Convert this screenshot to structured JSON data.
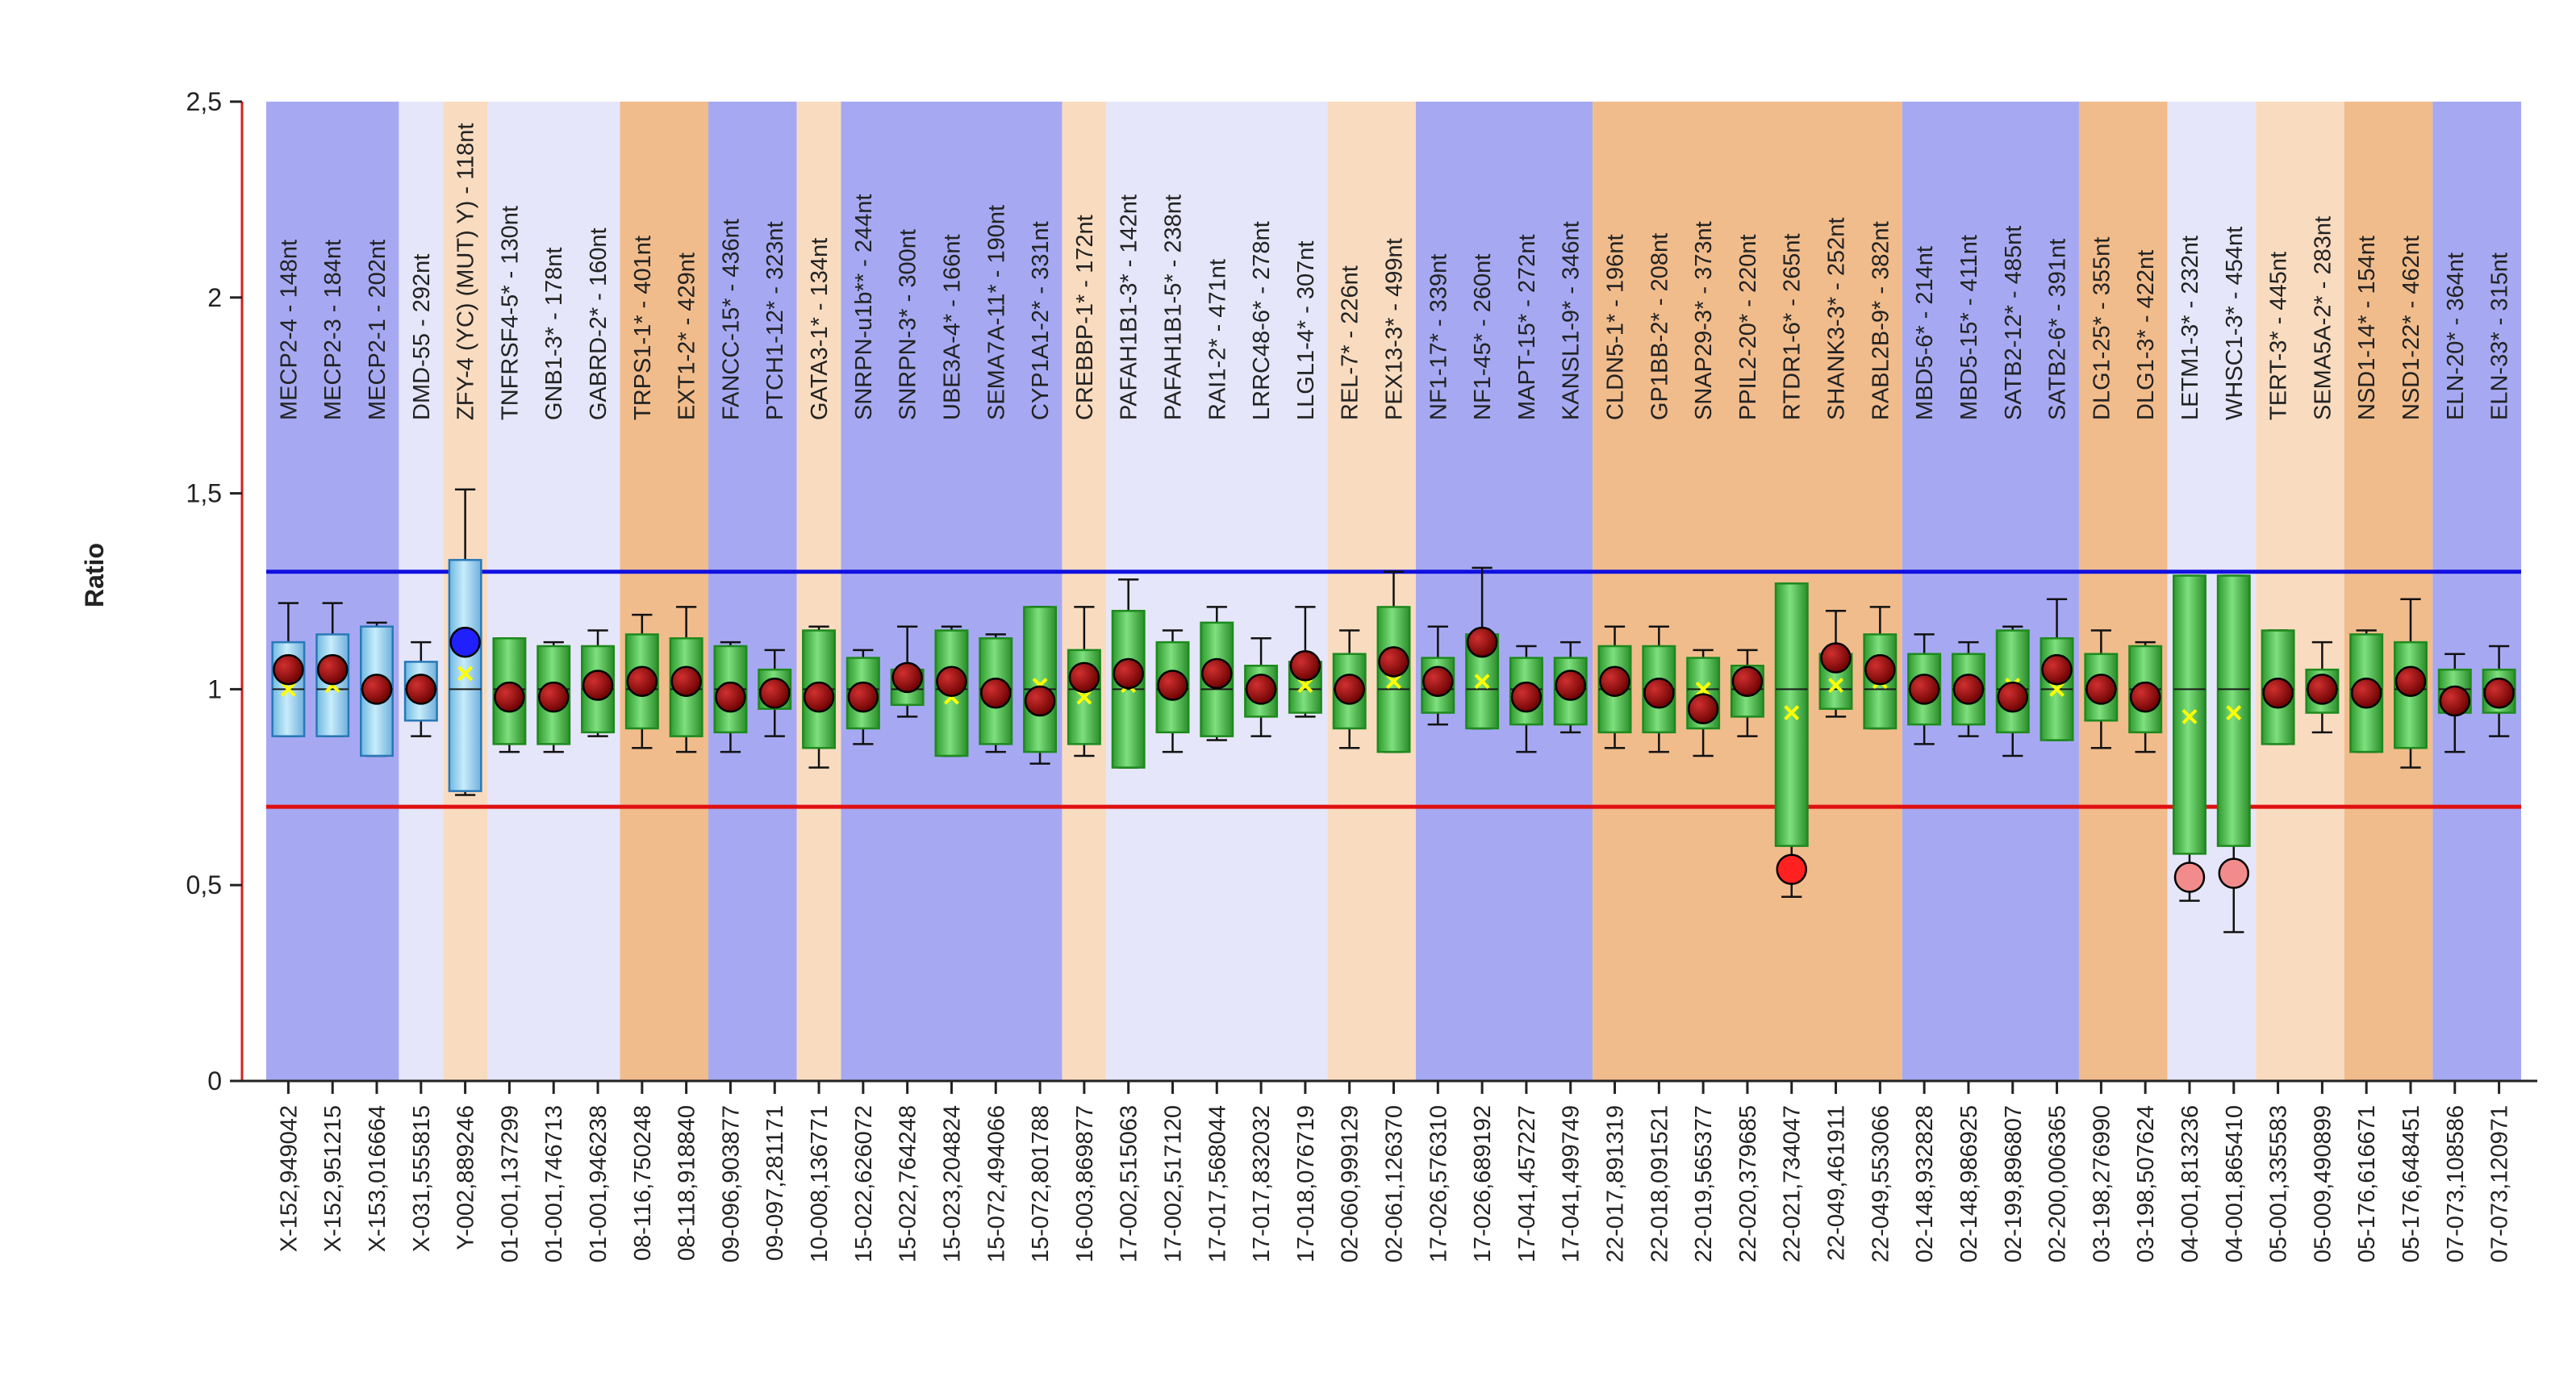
{
  "chart_data": {
    "type": "box",
    "title": "",
    "xlabel": "",
    "ylabel": "Ratio",
    "ylim": [
      0,
      2.5
    ],
    "yticks": [
      "0",
      "0,5",
      "1",
      "1,5",
      "2",
      "2,5"
    ],
    "ytick_values": [
      0,
      0.5,
      1,
      1.5,
      2,
      2.5
    ],
    "threshold_upper": 1.3,
    "threshold_lower": 0.7,
    "colors": {
      "band_blue": "#a6a9f2",
      "band_lavender": "#e6e6fa",
      "band_peach": "#f9dcc0",
      "band_orange": "#f1bc8c",
      "box_green": "#6fd36f",
      "box_green_dark": "#1e8a1e",
      "box_blue": "#a8dcf2",
      "box_blue_dark": "#2a78b8",
      "threshold_upper": "#1010e0",
      "threshold_lower": "#e01010",
      "axis": "#d02020",
      "marker_normal": "#b00000",
      "marker_up": "#2020ff",
      "marker_down": "#ff2020",
      "marker_down_light": "#f28b8b",
      "mean_marker": "#ffff00"
    },
    "bands": [
      {
        "span": [
          0,
          2
        ],
        "color": "band_blue"
      },
      {
        "span": [
          3,
          3
        ],
        "color": "band_lavender"
      },
      {
        "span": [
          4,
          4
        ],
        "color": "band_peach"
      },
      {
        "span": [
          5,
          7
        ],
        "color": "band_lavender"
      },
      {
        "span": [
          8,
          9
        ],
        "color": "band_orange"
      },
      {
        "span": [
          10,
          11
        ],
        "color": "band_blue"
      },
      {
        "span": [
          12,
          12
        ],
        "color": "band_peach"
      },
      {
        "span": [
          13,
          17
        ],
        "color": "band_blue"
      },
      {
        "span": [
          18,
          18
        ],
        "color": "band_peach"
      },
      {
        "span": [
          19,
          23
        ],
        "color": "band_lavender"
      },
      {
        "span": [
          24,
          25
        ],
        "color": "band_peach"
      },
      {
        "span": [
          26,
          29
        ],
        "color": "band_blue"
      },
      {
        "span": [
          30,
          36
        ],
        "color": "band_orange"
      },
      {
        "span": [
          37,
          40
        ],
        "color": "band_blue"
      },
      {
        "span": [
          41,
          42
        ],
        "color": "band_orange"
      },
      {
        "span": [
          43,
          44
        ],
        "color": "band_lavender"
      },
      {
        "span": [
          45,
          46
        ],
        "color": "band_peach"
      },
      {
        "span": [
          47,
          48
        ],
        "color": "band_orange"
      },
      {
        "span": [
          49,
          50
        ],
        "color": "band_blue"
      }
    ],
    "probes": [
      {
        "label": "MECP2-4 - 148nt",
        "x": "X-152,949042",
        "q1": 0.88,
        "q3": 1.12,
        "wlo": 0.88,
        "whi": 1.22,
        "value": 1.05,
        "mean": 1.0,
        "box": "box_blue",
        "marker": "marker_normal"
      },
      {
        "label": "MECP2-3 - 184nt",
        "x": "X-152,951215",
        "q1": 0.88,
        "q3": 1.14,
        "wlo": 0.88,
        "whi": 1.22,
        "value": 1.05,
        "mean": 1.01,
        "box": "box_blue",
        "marker": "marker_normal"
      },
      {
        "label": "MECP2-1 - 202nt",
        "x": "X-153,016664",
        "q1": 0.83,
        "q3": 1.16,
        "wlo": 0.83,
        "whi": 1.17,
        "value": 1.0,
        "mean": 1.0,
        "box": "box_blue",
        "marker": "marker_normal"
      },
      {
        "label": "DMD-55 - 292nt",
        "x": "X-031,555815",
        "q1": 0.92,
        "q3": 1.07,
        "wlo": 0.88,
        "whi": 1.12,
        "value": 1.0,
        "mean": 1.0,
        "box": "box_blue",
        "marker": "marker_normal"
      },
      {
        "label": "ZFY-4 (YC) (MUT) Y) - 118nt",
        "x": "Y-002,889246",
        "q1": 0.74,
        "q3": 1.33,
        "wlo": 0.73,
        "whi": 1.51,
        "value": 1.12,
        "mean": 1.04,
        "box": "box_blue",
        "marker": "marker_up"
      },
      {
        "label": "TNFRSF4-5* - 130nt",
        "x": "01-001,137299",
        "q1": 0.86,
        "q3": 1.13,
        "wlo": 0.84,
        "whi": 1.13,
        "value": 0.98,
        "mean": 0.98,
        "box": "box_green",
        "marker": "marker_normal"
      },
      {
        "label": "GNB1-3* - 178nt",
        "x": "01-001,746713",
        "q1": 0.86,
        "q3": 1.11,
        "wlo": 0.84,
        "whi": 1.12,
        "value": 0.98,
        "mean": 0.98,
        "box": "box_green",
        "marker": "marker_normal"
      },
      {
        "label": "GABRD-2* - 160nt",
        "x": "01-001,946238",
        "q1": 0.89,
        "q3": 1.11,
        "wlo": 0.88,
        "whi": 1.15,
        "value": 1.01,
        "mean": 1.01,
        "box": "box_green",
        "marker": "marker_normal"
      },
      {
        "label": "TRPS1-1* - 401nt",
        "x": "08-116,750248",
        "q1": 0.9,
        "q3": 1.14,
        "wlo": 0.85,
        "whi": 1.19,
        "value": 1.02,
        "mean": 1.02,
        "box": "box_green",
        "marker": "marker_normal"
      },
      {
        "label": "EXT1-2* - 429nt",
        "x": "08-118,918840",
        "q1": 0.88,
        "q3": 1.13,
        "wlo": 0.84,
        "whi": 1.21,
        "value": 1.02,
        "mean": 1.02,
        "box": "box_green",
        "marker": "marker_normal"
      },
      {
        "label": "FANCC-15* - 436nt",
        "x": "09-096,903877",
        "q1": 0.89,
        "q3": 1.11,
        "wlo": 0.84,
        "whi": 1.12,
        "value": 0.98,
        "mean": 0.98,
        "box": "box_green",
        "marker": "marker_normal"
      },
      {
        "label": "PTCH1-12* - 323nt",
        "x": "09-097,281171",
        "q1": 0.95,
        "q3": 1.05,
        "wlo": 0.88,
        "whi": 1.1,
        "value": 0.99,
        "mean": 0.99,
        "box": "box_green",
        "marker": "marker_normal"
      },
      {
        "label": "GATA3-1* - 134nt",
        "x": "10-008,136771",
        "q1": 0.85,
        "q3": 1.15,
        "wlo": 0.8,
        "whi": 1.16,
        "value": 0.98,
        "mean": 0.98,
        "box": "box_green",
        "marker": "marker_normal"
      },
      {
        "label": "SNRPN-u1b** - 244nt",
        "x": "15-022,626072",
        "q1": 0.9,
        "q3": 1.08,
        "wlo": 0.86,
        "whi": 1.1,
        "value": 0.98,
        "mean": 0.98,
        "box": "box_green",
        "marker": "marker_normal"
      },
      {
        "label": "SNRPN-3* - 300nt",
        "x": "15-022,764248",
        "q1": 0.96,
        "q3": 1.05,
        "wlo": 0.93,
        "whi": 1.16,
        "value": 1.03,
        "mean": 1.02,
        "box": "box_green",
        "marker": "marker_normal"
      },
      {
        "label": "UBE3A-4* - 166nt",
        "x": "15-023,204824",
        "q1": 0.83,
        "q3": 1.15,
        "wlo": 0.83,
        "whi": 1.16,
        "value": 1.02,
        "mean": 0.98,
        "box": "box_green",
        "marker": "marker_normal"
      },
      {
        "label": "SEMA7A-11* - 190nt",
        "x": "15-072,494066",
        "q1": 0.86,
        "q3": 1.13,
        "wlo": 0.84,
        "whi": 1.14,
        "value": 0.99,
        "mean": 1.0,
        "box": "box_green",
        "marker": "marker_normal"
      },
      {
        "label": "CYP1A1-2* - 331nt",
        "x": "15-072,801788",
        "q1": 0.84,
        "q3": 1.21,
        "wlo": 0.81,
        "whi": 1.21,
        "value": 0.97,
        "mean": 1.01,
        "box": "box_green",
        "marker": "marker_normal"
      },
      {
        "label": "CREBBP-1* - 172nt",
        "x": "16-003,869877",
        "q1": 0.86,
        "q3": 1.1,
        "wlo": 0.83,
        "whi": 1.21,
        "value": 1.03,
        "mean": 0.98,
        "box": "box_green",
        "marker": "marker_normal"
      },
      {
        "label": "PAFAH1B1-3* - 142nt",
        "x": "17-002,515063",
        "q1": 0.8,
        "q3": 1.2,
        "wlo": 0.8,
        "whi": 1.28,
        "value": 1.04,
        "mean": 1.01,
        "box": "box_green",
        "marker": "marker_normal"
      },
      {
        "label": "PAFAH1B1-5* - 238nt",
        "x": "17-002,517120",
        "q1": 0.89,
        "q3": 1.12,
        "wlo": 0.84,
        "whi": 1.15,
        "value": 1.01,
        "mean": 1.01,
        "box": "box_green",
        "marker": "marker_normal"
      },
      {
        "label": "RAI1-2* - 471nt",
        "x": "17-017,568044",
        "q1": 0.88,
        "q3": 1.17,
        "wlo": 0.87,
        "whi": 1.21,
        "value": 1.04,
        "mean": 1.04,
        "box": "box_green",
        "marker": "marker_normal"
      },
      {
        "label": "LRRC48-6* - 278nt",
        "x": "17-017,832032",
        "q1": 0.93,
        "q3": 1.06,
        "wlo": 0.88,
        "whi": 1.13,
        "value": 1.0,
        "mean": 1.0,
        "box": "box_green",
        "marker": "marker_normal"
      },
      {
        "label": "LLGL1-4* - 307nt",
        "x": "17-018,076719",
        "q1": 0.94,
        "q3": 1.07,
        "wlo": 0.93,
        "whi": 1.21,
        "value": 1.06,
        "mean": 1.01,
        "box": "box_green",
        "marker": "marker_normal"
      },
      {
        "label": "REL-7* - 226nt",
        "x": "02-060,999129",
        "q1": 0.9,
        "q3": 1.09,
        "wlo": 0.85,
        "whi": 1.15,
        "value": 1.0,
        "mean": 1.0,
        "box": "box_green",
        "marker": "marker_normal"
      },
      {
        "label": "PEX13-3* - 499nt",
        "x": "02-061,126370",
        "q1": 0.84,
        "q3": 1.21,
        "wlo": 0.84,
        "whi": 1.3,
        "value": 1.07,
        "mean": 1.02,
        "box": "box_green",
        "marker": "marker_normal"
      },
      {
        "label": "NF1-17* - 339nt",
        "x": "17-026,576310",
        "q1": 0.94,
        "q3": 1.08,
        "wlo": 0.91,
        "whi": 1.16,
        "value": 1.02,
        "mean": 1.01,
        "box": "box_green",
        "marker": "marker_normal"
      },
      {
        "label": "NF1-45* - 260nt",
        "x": "17-026,689192",
        "q1": 0.9,
        "q3": 1.14,
        "wlo": 0.9,
        "whi": 1.31,
        "value": 1.12,
        "mean": 1.02,
        "box": "box_green",
        "marker": "marker_normal"
      },
      {
        "label": "MAPT-15* - 272nt",
        "x": "17-041,457227",
        "q1": 0.91,
        "q3": 1.08,
        "wlo": 0.84,
        "whi": 1.11,
        "value": 0.98,
        "mean": 0.98,
        "box": "box_green",
        "marker": "marker_normal"
      },
      {
        "label": "KANSL1-9* - 346nt",
        "x": "17-041,499749",
        "q1": 0.91,
        "q3": 1.08,
        "wlo": 0.89,
        "whi": 1.12,
        "value": 1.01,
        "mean": 1.0,
        "box": "box_green",
        "marker": "marker_normal"
      },
      {
        "label": "CLDN5-1* - 196nt",
        "x": "22-017,891319",
        "q1": 0.89,
        "q3": 1.11,
        "wlo": 0.85,
        "whi": 1.16,
        "value": 1.02,
        "mean": 1.0,
        "box": "box_green",
        "marker": "marker_normal"
      },
      {
        "label": "GP1BB-2* - 208nt",
        "x": "22-018,091521",
        "q1": 0.89,
        "q3": 1.11,
        "wlo": 0.84,
        "whi": 1.16,
        "value": 0.99,
        "mean": 0.99,
        "box": "box_green",
        "marker": "marker_normal"
      },
      {
        "label": "SNAP29-3* - 373nt",
        "x": "22-019,565377",
        "q1": 0.9,
        "q3": 1.08,
        "wlo": 0.83,
        "whi": 1.1,
        "value": 0.95,
        "mean": 1.0,
        "box": "box_green",
        "marker": "marker_normal"
      },
      {
        "label": "PPIL2-20* - 220nt",
        "x": "22-020,379685",
        "q1": 0.93,
        "q3": 1.06,
        "wlo": 0.88,
        "whi": 1.1,
        "value": 1.02,
        "mean": 1.02,
        "box": "box_green",
        "marker": "marker_normal"
      },
      {
        "label": "RTDR1-6* - 265nt",
        "x": "22-021,734047",
        "q1": 0.6,
        "q3": 1.27,
        "wlo": 0.47,
        "whi": 1.27,
        "value": 0.54,
        "mean": 0.94,
        "box": "box_green",
        "marker": "marker_down"
      },
      {
        "label": "SHANK3-3* - 252nt",
        "x": "22-049,461911",
        "q1": 0.95,
        "q3": 1.09,
        "wlo": 0.93,
        "whi": 1.2,
        "value": 1.08,
        "mean": 1.01,
        "box": "box_green",
        "marker": "marker_normal"
      },
      {
        "label": "RABL2B-9* - 382nt",
        "x": "22-049,553066",
        "q1": 0.9,
        "q3": 1.14,
        "wlo": 0.9,
        "whi": 1.21,
        "value": 1.05,
        "mean": 1.02,
        "box": "box_green",
        "marker": "marker_normal"
      },
      {
        "label": "MBD5-6* - 214nt",
        "x": "02-148,932828",
        "q1": 0.91,
        "q3": 1.09,
        "wlo": 0.86,
        "whi": 1.14,
        "value": 1.0,
        "mean": 1.0,
        "box": "box_green",
        "marker": "marker_normal"
      },
      {
        "label": "MBD5-15* - 411nt",
        "x": "02-148,986925",
        "q1": 0.91,
        "q3": 1.09,
        "wlo": 0.88,
        "whi": 1.12,
        "value": 1.0,
        "mean": 1.0,
        "box": "box_green",
        "marker": "marker_normal"
      },
      {
        "label": "SATB2-12* - 485nt",
        "x": "02-199,896807",
        "q1": 0.89,
        "q3": 1.15,
        "wlo": 0.83,
        "whi": 1.16,
        "value": 0.98,
        "mean": 1.01,
        "box": "box_green",
        "marker": "marker_normal"
      },
      {
        "label": "SATB2-6* - 391nt",
        "x": "02-200,006365",
        "q1": 0.87,
        "q3": 1.13,
        "wlo": 0.87,
        "whi": 1.23,
        "value": 1.05,
        "mean": 1.0,
        "box": "box_green",
        "marker": "marker_normal"
      },
      {
        "label": "DLG1-25* - 355nt",
        "x": "03-198,276990",
        "q1": 0.92,
        "q3": 1.09,
        "wlo": 0.85,
        "whi": 1.15,
        "value": 1.0,
        "mean": 1.0,
        "box": "box_green",
        "marker": "marker_normal"
      },
      {
        "label": "DLG1-3* - 422nt",
        "x": "03-198,507624",
        "q1": 0.89,
        "q3": 1.11,
        "wlo": 0.84,
        "whi": 1.12,
        "value": 0.98,
        "mean": 0.98,
        "box": "box_green",
        "marker": "marker_normal"
      },
      {
        "label": "LETM1-3* - 232nt",
        "x": "04-001,813236",
        "q1": 0.58,
        "q3": 1.29,
        "wlo": 0.46,
        "whi": 1.29,
        "value": 0.52,
        "mean": 0.93,
        "box": "box_green",
        "marker": "marker_down_light"
      },
      {
        "label": "WHSC1-3* - 454nt",
        "x": "04-001,865410",
        "q1": 0.6,
        "q3": 1.29,
        "wlo": 0.38,
        "whi": 1.29,
        "value": 0.53,
        "mean": 0.94,
        "box": "box_green",
        "marker": "marker_down_light"
      },
      {
        "label": "TERT-3* - 445nt",
        "x": "05-001,335583",
        "q1": 0.86,
        "q3": 1.15,
        "wlo": 0.86,
        "whi": 1.15,
        "value": 0.99,
        "mean": 0.99,
        "box": "box_green",
        "marker": "marker_normal"
      },
      {
        "label": "SEMA5A-2* - 283nt",
        "x": "05-009,490899",
        "q1": 0.94,
        "q3": 1.05,
        "wlo": 0.89,
        "whi": 1.12,
        "value": 1.0,
        "mean": 1.0,
        "box": "box_green",
        "marker": "marker_normal"
      },
      {
        "label": "NSD1-14* - 154nt",
        "x": "05-176,616671",
        "q1": 0.84,
        "q3": 1.14,
        "wlo": 0.84,
        "whi": 1.15,
        "value": 0.99,
        "mean": 0.99,
        "box": "box_green",
        "marker": "marker_normal"
      },
      {
        "label": "NSD1-22* - 462nt",
        "x": "05-176,648451",
        "q1": 0.85,
        "q3": 1.12,
        "wlo": 0.8,
        "whi": 1.23,
        "value": 1.02,
        "mean": 1.02,
        "box": "box_green",
        "marker": "marker_normal"
      },
      {
        "label": "ELN-20* - 364nt",
        "x": "07-073,108586",
        "q1": 0.94,
        "q3": 1.05,
        "wlo": 0.84,
        "whi": 1.09,
        "value": 0.97,
        "mean": 0.97,
        "box": "box_green",
        "marker": "marker_normal"
      },
      {
        "label": "ELN-33* - 315nt",
        "x": "07-073,120971",
        "q1": 0.94,
        "q3": 1.05,
        "wlo": 0.88,
        "whi": 1.11,
        "value": 0.99,
        "mean": 0.99,
        "box": "box_green",
        "marker": "marker_normal"
      }
    ]
  }
}
